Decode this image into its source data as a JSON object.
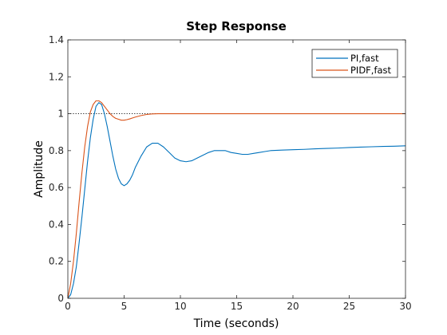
{
  "chart_data": {
    "type": "line",
    "title": "Step Response",
    "xlabel": "Time (seconds)",
    "ylabel": "Amplitude",
    "xlim": [
      0,
      30
    ],
    "ylim": [
      0,
      1.4
    ],
    "xticks": [
      0,
      5,
      10,
      15,
      20,
      25,
      30
    ],
    "yticks": [
      0,
      0.2,
      0.4,
      0.6,
      0.8,
      1,
      1.2,
      1.4
    ],
    "xtick_labels": [
      "0",
      "5",
      "10",
      "15",
      "20",
      "25",
      "30"
    ],
    "ytick_labels": [
      "0",
      "0.2",
      "0.4",
      "0.6",
      "0.8",
      "1",
      "1.2",
      "1.4"
    ],
    "grid": false,
    "legend_position": "top-right",
    "reference_line": {
      "y": 1,
      "x_range": [
        0,
        8
      ],
      "style": "dotted",
      "color": "#000000"
    },
    "series": [
      {
        "name": "PI,fast",
        "color": "#0072BD",
        "x": [
          0,
          0.25,
          0.5,
          0.75,
          1.0,
          1.25,
          1.5,
          1.75,
          2.0,
          2.25,
          2.5,
          2.75,
          3.0,
          3.25,
          3.5,
          3.75,
          4.0,
          4.25,
          4.5,
          4.75,
          5.0,
          5.25,
          5.5,
          5.75,
          6.0,
          6.5,
          7.0,
          7.5,
          8.0,
          8.5,
          9.0,
          9.5,
          10.0,
          10.5,
          11.0,
          11.5,
          12.0,
          12.5,
          13.0,
          13.5,
          14.0,
          14.5,
          15.0,
          15.5,
          16.0,
          16.5,
          17.0,
          17.5,
          18.0,
          19.0,
          20.0,
          21.0,
          22.0,
          23.0,
          24.0,
          25.0,
          26.0,
          27.0,
          28.0,
          29.0,
          30.0
        ],
        "y": [
          0,
          0.02,
          0.08,
          0.17,
          0.3,
          0.44,
          0.59,
          0.74,
          0.87,
          0.97,
          1.04,
          1.06,
          1.05,
          1.0,
          0.93,
          0.85,
          0.77,
          0.7,
          0.65,
          0.62,
          0.61,
          0.62,
          0.64,
          0.67,
          0.71,
          0.77,
          0.82,
          0.84,
          0.84,
          0.82,
          0.79,
          0.76,
          0.745,
          0.74,
          0.745,
          0.76,
          0.775,
          0.79,
          0.8,
          0.8,
          0.8,
          0.79,
          0.785,
          0.78,
          0.78,
          0.785,
          0.79,
          0.795,
          0.8,
          0.803,
          0.805,
          0.807,
          0.81,
          0.812,
          0.814,
          0.817,
          0.819,
          0.821,
          0.823,
          0.824,
          0.826
        ]
      },
      {
        "name": "PIDF,fast",
        "color": "#D95319",
        "x": [
          0,
          0.25,
          0.5,
          0.75,
          1.0,
          1.25,
          1.5,
          1.75,
          2.0,
          2.25,
          2.5,
          2.75,
          3.0,
          3.25,
          3.5,
          3.75,
          4.0,
          4.25,
          4.5,
          4.75,
          5.0,
          5.25,
          5.5,
          5.75,
          6.0,
          6.5,
          7.0,
          7.5,
          8.0,
          9.0,
          10.0,
          12.0,
          15.0,
          20.0,
          25.0,
          30.0
        ],
        "y": [
          0,
          0.08,
          0.2,
          0.35,
          0.52,
          0.68,
          0.82,
          0.93,
          1.01,
          1.05,
          1.07,
          1.07,
          1.06,
          1.04,
          1.02,
          1.0,
          0.985,
          0.975,
          0.97,
          0.965,
          0.965,
          0.968,
          0.972,
          0.977,
          0.982,
          0.99,
          0.996,
          0.999,
          1.0,
          1.0,
          1.0,
          1.0,
          1.0,
          1.0,
          1.0,
          1.0
        ]
      }
    ]
  }
}
